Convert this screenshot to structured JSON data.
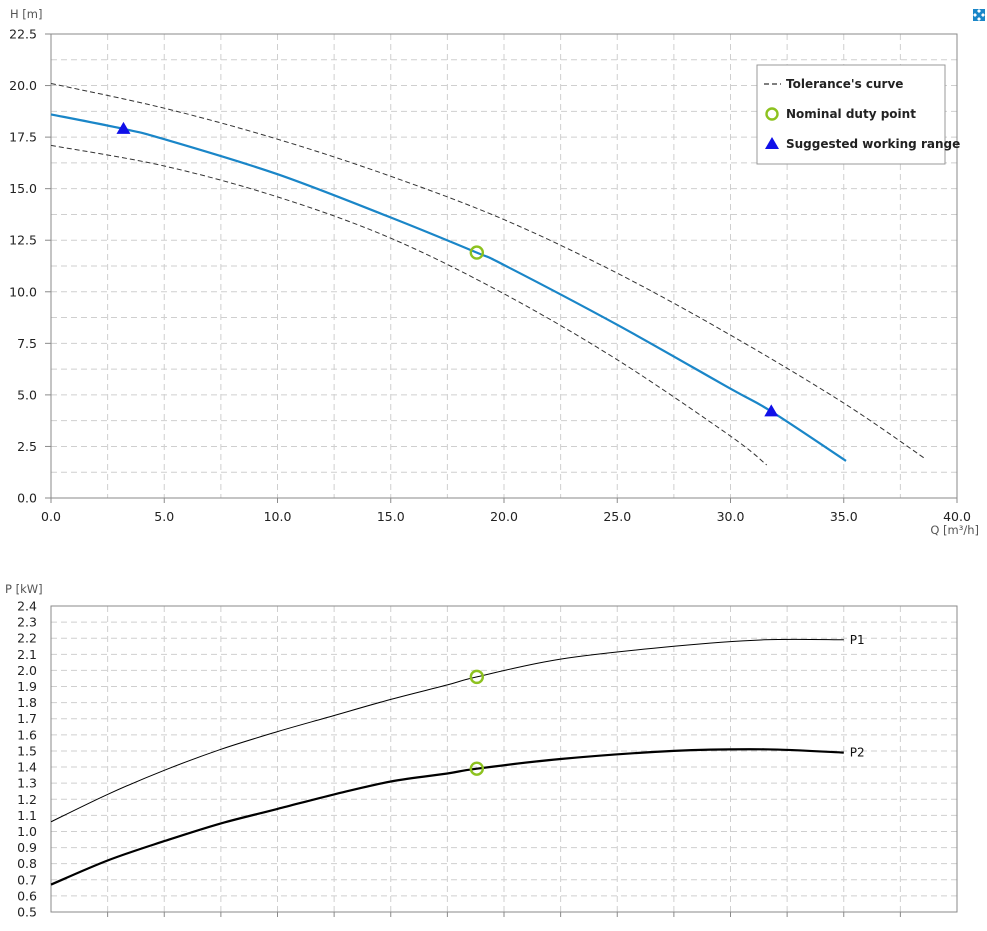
{
  "expand_icon": "expand-arrows-icon",
  "colors": {
    "curve": "#1a86c8",
    "tolerance": "#333333",
    "duty_point": "#8dc21f",
    "working_range": "#1010e8",
    "power": "#000000"
  },
  "chart_data": [
    {
      "type": "line",
      "ylabel": "H [m]",
      "xlabel": "Q [m³/h]",
      "xlim": [
        0,
        40
      ],
      "ylim": [
        0,
        22.5
      ],
      "xticks": [
        "0.0",
        "5.0",
        "10.0",
        "15.0",
        "20.0",
        "25.0",
        "30.0",
        "35.0",
        "40.0"
      ],
      "yticks": [
        "0.0",
        "2.5",
        "5.0",
        "7.5",
        "10.0",
        "12.5",
        "15.0",
        "17.5",
        "20.0",
        "22.5"
      ],
      "grid": true,
      "legend_position": "top-right",
      "legend": {
        "tolerance": "Tolerance's curve",
        "duty": "Nominal duty point",
        "range": "Suggested working range"
      },
      "series": [
        {
          "role": "main",
          "x": [
            0,
            3.2,
            5,
            10,
            15,
            18.8,
            20,
            25,
            30,
            31.8,
            35.1
          ],
          "y": [
            18.6,
            17.9,
            17.4,
            15.7,
            13.6,
            11.9,
            11.3,
            8.4,
            5.3,
            4.2,
            1.8
          ]
        },
        {
          "role": "tolerance-upper",
          "x": [
            0,
            5,
            10,
            15,
            20,
            25,
            30,
            35,
            38.6
          ],
          "y": [
            20.1,
            18.9,
            17.4,
            15.6,
            13.5,
            10.9,
            7.9,
            4.6,
            1.9
          ]
        },
        {
          "role": "tolerance-lower",
          "x": [
            0,
            5,
            10,
            15,
            20,
            25,
            30,
            31.6
          ],
          "y": [
            17.1,
            16.1,
            14.6,
            12.6,
            9.9,
            6.7,
            3.0,
            1.6
          ]
        }
      ],
      "duty_point": {
        "x": 18.8,
        "y": 11.9
      },
      "working_range": [
        {
          "x": 3.2,
          "y": 17.9
        },
        {
          "x": 31.8,
          "y": 4.2
        }
      ]
    },
    {
      "type": "line",
      "ylabel": "P [kW]",
      "xlim": [
        0,
        40
      ],
      "ylim": [
        0.5,
        2.4
      ],
      "yticks": [
        "2.4",
        "2.3",
        "2.2",
        "2.1",
        "2.0",
        "1.9",
        "1.8",
        "1.7",
        "1.6",
        "1.5",
        "1.4",
        "1.3",
        "1.2",
        "1.1",
        "1.0",
        "0.9",
        "0.8",
        "0.7",
        "0.6",
        "0.5"
      ],
      "grid": true,
      "series": [
        {
          "name": "P1",
          "x": [
            0,
            2.5,
            5,
            7.5,
            10,
            12.5,
            15,
            17.5,
            18.8,
            22.5,
            27.5,
            31.5,
            35
          ],
          "y": [
            1.06,
            1.23,
            1.38,
            1.51,
            1.62,
            1.72,
            1.82,
            1.91,
            1.96,
            2.07,
            2.15,
            2.19,
            2.19
          ]
        },
        {
          "name": "P2",
          "x": [
            0,
            2.5,
            5,
            7.5,
            10,
            12.5,
            15,
            17.5,
            18.8,
            22.5,
            27.5,
            31.5,
            35
          ],
          "y": [
            0.67,
            0.82,
            0.94,
            1.05,
            1.14,
            1.23,
            1.31,
            1.36,
            1.39,
            1.45,
            1.5,
            1.51,
            1.49
          ]
        }
      ],
      "duty_points": [
        {
          "x": 18.8,
          "y": 1.96
        },
        {
          "x": 18.8,
          "y": 1.39
        }
      ]
    }
  ]
}
